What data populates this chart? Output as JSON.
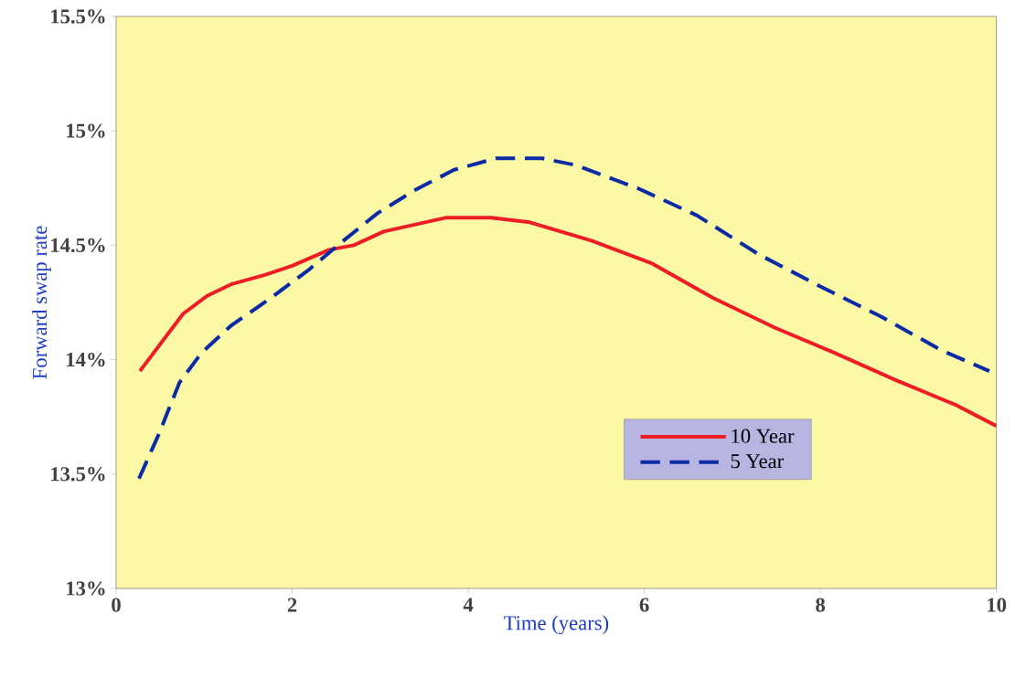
{
  "chart_data": {
    "type": "line",
    "xlabel": "Time (years)",
    "ylabel": "Forward swap rate",
    "xlim": [
      0,
      10
    ],
    "ylim": [
      13,
      15.5
    ],
    "xticks": [
      0,
      2,
      4,
      6,
      8,
      10
    ],
    "yticks": [
      {
        "value": 13,
        "label": "13%"
      },
      {
        "value": 13.5,
        "label": "13.5%"
      },
      {
        "value": 14,
        "label": "14%"
      },
      {
        "value": 14.5,
        "label": "14.5%"
      },
      {
        "value": 15,
        "label": "15%"
      },
      {
        "value": 15.5,
        "label": "15.5%"
      }
    ],
    "grid": false,
    "legend": "bottom right",
    "marker": "none",
    "series": [
      {
        "name": "10 Year",
        "color": "#ee1c25",
        "line_style": "solid",
        "x": [
          0.27,
          0.76,
          1.04,
          1.31,
          1.69,
          2.0,
          2.42,
          2.7,
          3.04,
          3.39,
          3.74,
          4.26,
          4.7,
          5.4,
          6.09,
          6.78,
          7.48,
          8.16,
          8.86,
          9.55,
          10
        ],
        "values": [
          13.95,
          14.2,
          14.28,
          14.33,
          14.37,
          14.41,
          14.48,
          14.5,
          14.56,
          14.59,
          14.62,
          14.62,
          14.6,
          14.52,
          14.42,
          14.27,
          14.14,
          14.03,
          13.91,
          13.8,
          13.71
        ]
      },
      {
        "name": "5 Year",
        "color": "#0a2aa6",
        "line_style": "dashed",
        "x": [
          0.26,
          0.48,
          0.72,
          0.97,
          1.31,
          1.76,
          2.18,
          2.55,
          2.97,
          3.39,
          3.84,
          4.32,
          4.84,
          5.22,
          5.92,
          6.6,
          7.3,
          8.0,
          8.68,
          9.38,
          9.92
        ],
        "values": [
          13.48,
          13.67,
          13.9,
          14.03,
          14.15,
          14.27,
          14.39,
          14.51,
          14.64,
          14.74,
          14.83,
          14.88,
          14.88,
          14.85,
          14.75,
          14.63,
          14.46,
          14.32,
          14.19,
          14.04,
          13.95
        ]
      }
    ]
  }
}
